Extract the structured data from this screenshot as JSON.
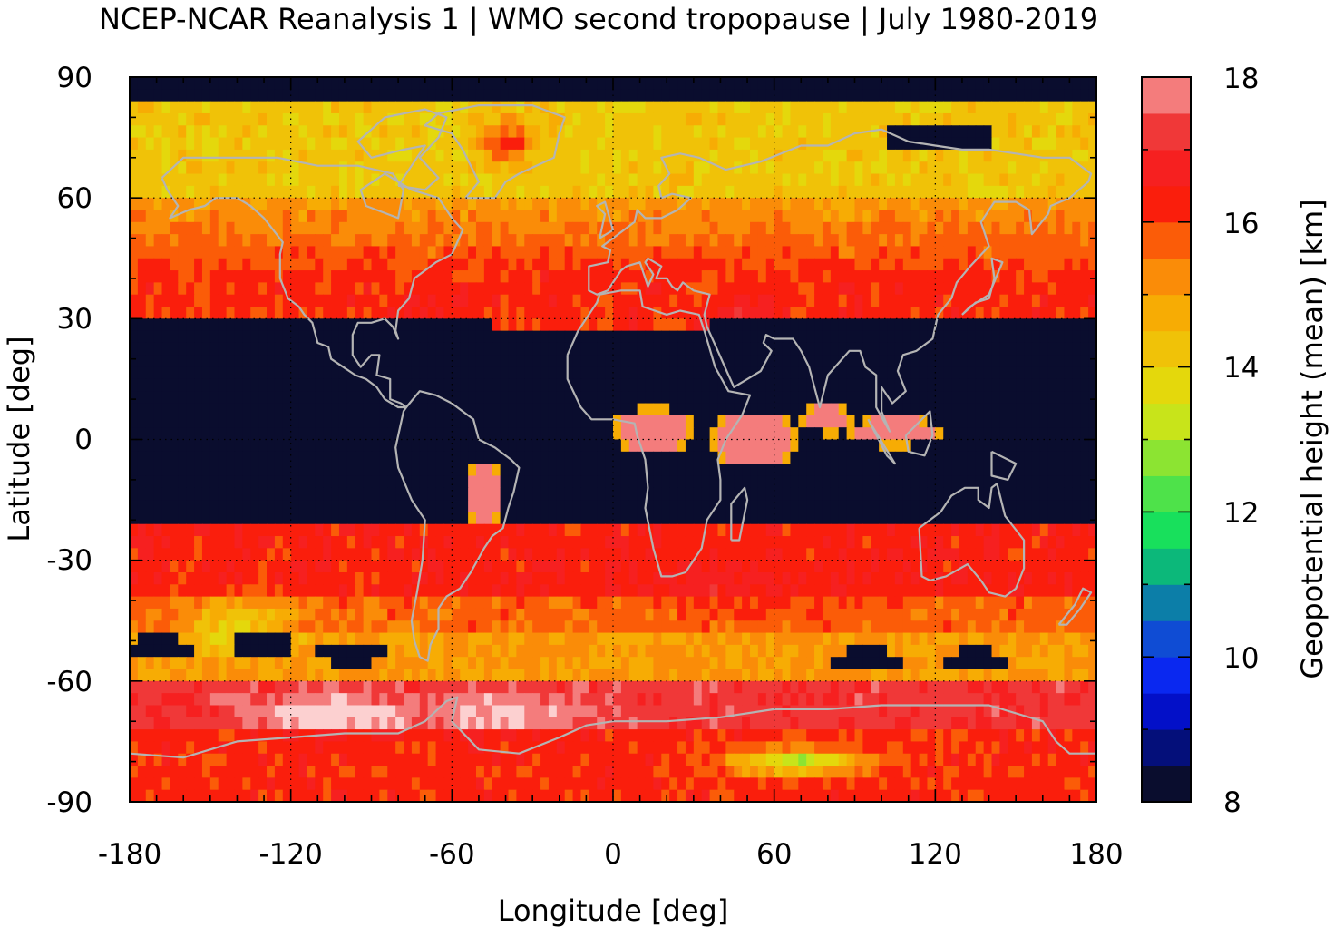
{
  "chart_data": {
    "type": "heatmap",
    "title": "NCEP-NCAR Reanalysis 1 | WMO second tropopause | July 1980-2019",
    "xlabel": "Longitude [deg]",
    "ylabel": "Latitude [deg]",
    "xlim": [
      -180,
      180
    ],
    "ylim": [
      -90,
      90
    ],
    "xticks": [
      "-180",
      "-120",
      "-60",
      "0",
      "60",
      "120",
      "180"
    ],
    "yticks": [
      "90",
      "60",
      "30",
      "0",
      "-30",
      "-60",
      "-90"
    ],
    "grid": true,
    "grid_lines_at": {
      "x": [
        -120,
        -60,
        0,
        60,
        120
      ],
      "y": [
        60,
        30,
        0,
        -30,
        -60
      ]
    },
    "coastlines": true,
    "coastline_color": "#b4b4b4",
    "colorbar": {
      "label": "Geopotential height (mean) [km]",
      "range": [
        8,
        18
      ],
      "step": 0.5,
      "tick_labels": [
        "18",
        "16",
        "14",
        "12",
        "10",
        "8"
      ],
      "colors": [
        "#0a0d2e",
        "#040f7a",
        "#0310c8",
        "#0a28f0",
        "#0f4cd4",
        "#0c7ea8",
        "#0cb87a",
        "#18e05c",
        "#4ee24a",
        "#8ce432",
        "#c8e41a",
        "#e4d80c",
        "#f0c208",
        "#f7ac04",
        "#fa8c08",
        "#fb5c08",
        "#fa1e0c",
        "#f62020",
        "#f03838",
        "#f47c7c",
        "#fcd0d0"
      ]
    },
    "field_summary": [
      {
        "region": "tropics (approx. 25S-30N)",
        "value_km": "< 8.5 (no second tropopause)"
      },
      {
        "region": "equatorial Africa / Amazon / Maritime Continent patches",
        "value_km": 17.8
      },
      {
        "region": "northern subtropics / mid-latitudes (30N-60N)",
        "value_km": 16.0
      },
      {
        "region": "Arctic (60N-90N)",
        "value_km": 14.2
      },
      {
        "region": "Greenland maximum",
        "value_km": 16.2
      },
      {
        "region": "southern mid-latitudes (25S-50S)",
        "value_km": 16.3
      },
      {
        "region": "Southern Ocean storm track (50S-60S)",
        "value_km": 15.0
      },
      {
        "region": "Antarctic coast / Weddell sector",
        "value_km": 17.6
      },
      {
        "region": "East Antarctic plateau (around 80S, 30-110E)",
        "value_km": 13.5
      }
    ]
  }
}
